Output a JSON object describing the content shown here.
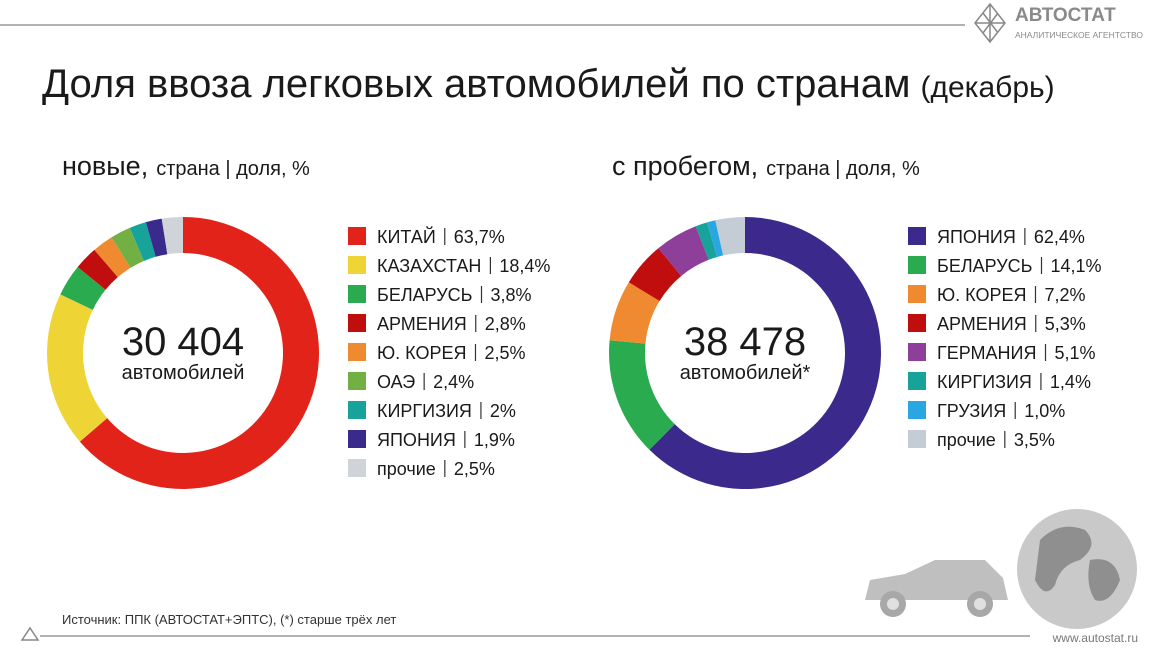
{
  "header": {
    "title": "Доля ввоза легковых автомобилей по странам",
    "title_note": "(декабрь)",
    "logo": "АВТОСТАТ",
    "logo_tagline": "АНАЛИТИЧЕСКОЕ АГЕНТСТВО"
  },
  "chart_data": [
    {
      "type": "donut",
      "label": "новые,",
      "subtitle": "страна | доля, %",
      "center_value": "30 404",
      "center_label": "автомобилей",
      "categories": [
        "КИТАЙ",
        "КАЗАХСТАН",
        "БЕЛАРУСЬ",
        "АРМЕНИЯ",
        "Ю. КОРЕЯ",
        "ОАЭ",
        "КИРГИЗИЯ",
        "ЯПОНИЯ",
        "прочие"
      ],
      "values": [
        63.7,
        18.4,
        3.8,
        2.8,
        2.5,
        2.4,
        2,
        1.9,
        2.5
      ],
      "value_labels": [
        "63,7%",
        "18,4%",
        "3,8%",
        "2,8%",
        "2,5%",
        "2,4%",
        "2%",
        "1,9%",
        "2,5%"
      ],
      "colors": [
        "#e2231a",
        "#eed535",
        "#2bab4f",
        "#c00d0d",
        "#f08a30",
        "#72b043",
        "#17a39a",
        "#3a2a8c",
        "#d0d3d8"
      ]
    },
    {
      "type": "donut",
      "label": "с пробегом,",
      "subtitle": "страна | доля, %",
      "center_value": "38 478",
      "center_label": "автомобилей*",
      "categories": [
        "ЯПОНИЯ",
        "БЕЛАРУСЬ",
        "Ю. КОРЕЯ",
        "АРМЕНИЯ",
        "ГЕРМАНИЯ",
        "КИРГИЗИЯ",
        "ГРУЗИЯ",
        "прочие"
      ],
      "values": [
        62.4,
        14.1,
        7.2,
        5.3,
        5.1,
        1.4,
        1.0,
        3.5
      ],
      "value_labels": [
        "62,4%",
        "14,1%",
        "7,2%",
        "5,3%",
        "5,1%",
        "1,4%",
        "1,0%",
        "3,5%"
      ],
      "colors": [
        "#3b2a8c",
        "#2bab4f",
        "#f08a30",
        "#c00d0d",
        "#8e3f99",
        "#17a39a",
        "#2aa7e0",
        "#c4ccd6"
      ]
    }
  ],
  "footer": {
    "source": "Источник: ППК (АВТОСТАТ+ЭПТС), (*) старше трёх лет",
    "url": "www.autostat.ru"
  }
}
